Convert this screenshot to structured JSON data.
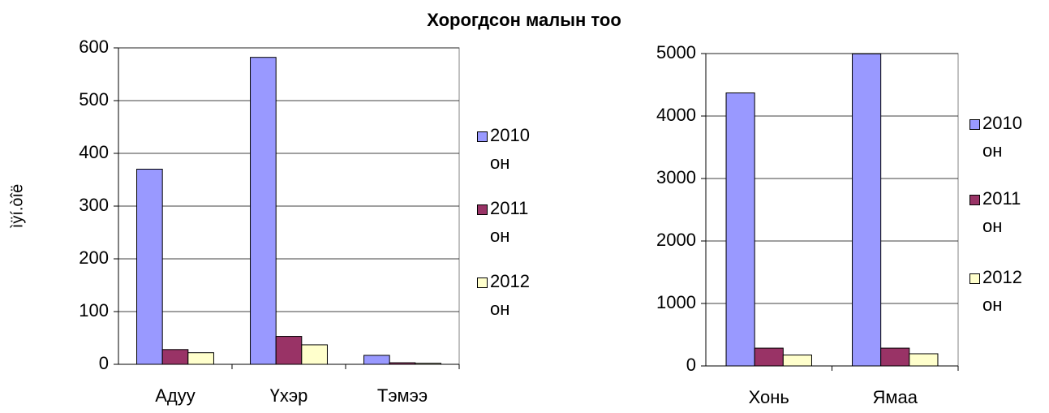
{
  "title": "Хорогдсон малын тоо",
  "chart_data": [
    {
      "type": "bar",
      "y_label": "ìÿí.òîë",
      "categories": [
        "Адуу",
        "Үхэр",
        "Тэмээ"
      ],
      "series": [
        {
          "name": "2010 он",
          "color": "#9999ff",
          "values": [
            370,
            582,
            17
          ]
        },
        {
          "name": "2011 он",
          "color": "#993366",
          "values": [
            28,
            53,
            3
          ]
        },
        {
          "name": "2012 он",
          "color": "#ffffcc",
          "values": [
            22,
            37,
            2
          ]
        }
      ],
      "ylim": [
        0,
        600
      ],
      "yticks": [
        0,
        100,
        200,
        300,
        400,
        500,
        600
      ],
      "grid": true,
      "legend": "right"
    },
    {
      "type": "bar",
      "categories": [
        "Хонь",
        "Ямаа"
      ],
      "series": [
        {
          "name": "2010 он",
          "color": "#9999ff",
          "values": [
            4370,
            4995
          ]
        },
        {
          "name": "2011 он",
          "color": "#993366",
          "values": [
            285,
            285
          ]
        },
        {
          "name": "2012 он",
          "color": "#ffffcc",
          "values": [
            175,
            195
          ]
        }
      ],
      "ylim": [
        0,
        5000
      ],
      "yticks": [
        0,
        1000,
        2000,
        3000,
        4000,
        5000
      ],
      "grid": true,
      "legend": "right"
    }
  ]
}
